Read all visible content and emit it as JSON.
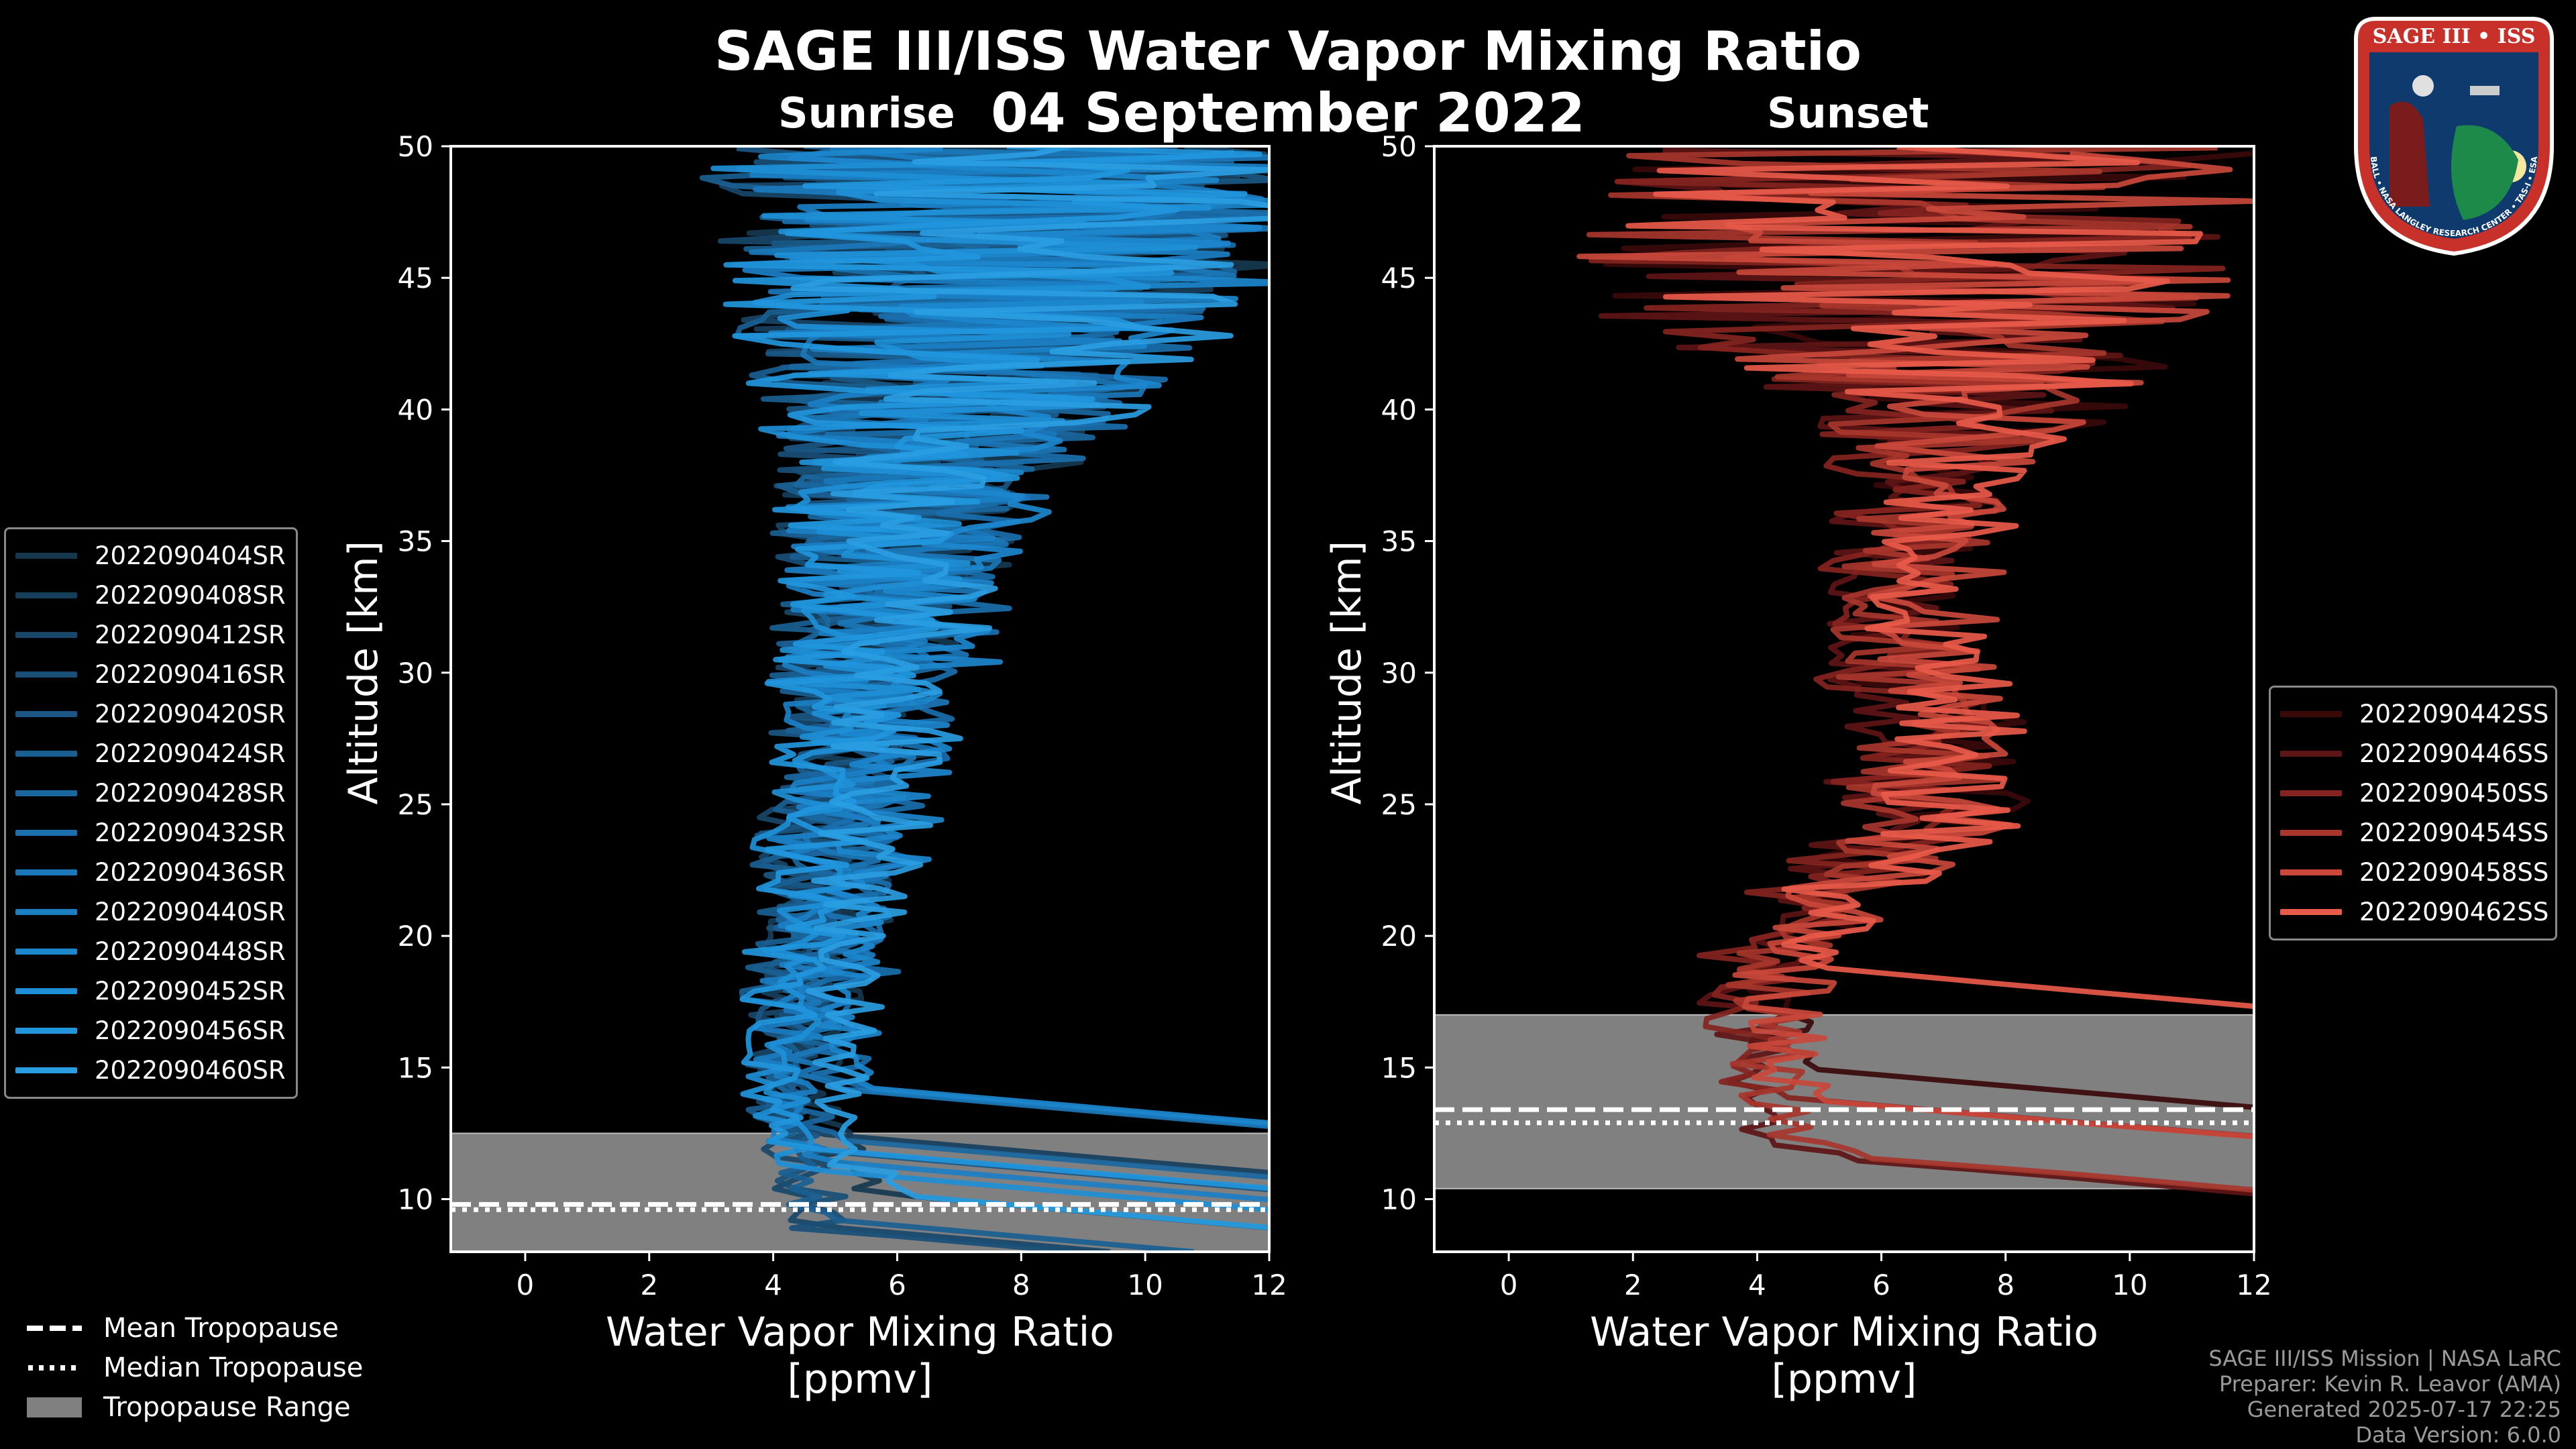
{
  "title": "SAGE III/ISS Water Vapor Mixing Ratio",
  "date": "04 September 2022",
  "panels": {
    "sunrise_label": "Sunrise",
    "sunset_label": "Sunset"
  },
  "credits": {
    "line1": "SAGE III/ISS Mission | NASA LaRC",
    "line2": "Preparer: Kevin R. Leavor (AMA)",
    "line3": "Generated 2025-07-17 22:25",
    "line4": "Data Version: 6.0.0"
  },
  "logo": {
    "text": "SAGE III • ISS",
    "ring_text": "BALL • NASA LANGLEY RESEARCH CENTER • TAS-I • ESA"
  },
  "bottom_legend": {
    "mean": "Mean Tropopause",
    "median": "Median Tropopause",
    "range": "Tropopause Range"
  },
  "colors": {
    "sunrise_base": "#1e90d8",
    "sunset_base": "#e85a4a",
    "range_fill": "#808080",
    "background": "#000000"
  },
  "chart_data": [
    {
      "type": "line",
      "panel": "Sunrise",
      "xlabel": "Water Vapor Mixing Ratio\n[ppmv]",
      "xlabel_line1": "Water Vapor Mixing Ratio",
      "xlabel_line2": "[ppmv]",
      "ylabel": "Altitude [km]",
      "xlim": [
        -1.2,
        12
      ],
      "ylim": [
        8,
        50
      ],
      "xticks": [
        0,
        2,
        4,
        6,
        8,
        10,
        12
      ],
      "yticks": [
        10,
        15,
        20,
        25,
        30,
        35,
        40,
        45,
        50
      ],
      "tropopause": {
        "mean": 9.8,
        "median": 9.6,
        "range": [
          8,
          12.5
        ]
      },
      "series": [
        {
          "name": "2022090404SR",
          "color": "#16384f"
        },
        {
          "name": "2022090408SR",
          "color": "#173f5c"
        },
        {
          "name": "2022090412SR",
          "color": "#184769"
        },
        {
          "name": "2022090416SR",
          "color": "#194f77"
        },
        {
          "name": "2022090420SR",
          "color": "#1a5784"
        },
        {
          "name": "2022090424SR",
          "color": "#1a5f92"
        },
        {
          "name": "2022090428SR",
          "color": "#1a679f"
        },
        {
          "name": "2022090432SR",
          "color": "#1a6fac"
        },
        {
          "name": "2022090436SR",
          "color": "#1b77b9"
        },
        {
          "name": "2022090440SR",
          "color": "#1b7fc4"
        },
        {
          "name": "2022090448SR",
          "color": "#1c87cd"
        },
        {
          "name": "2022090452SR",
          "color": "#1e8fd6"
        },
        {
          "name": "2022090456SR",
          "color": "#2196dd"
        },
        {
          "name": "2022090460SR",
          "color": "#2a9de2"
        }
      ],
      "profile_envelope": {
        "altitudes": [
          10,
          12,
          13,
          15,
          18,
          20,
          22,
          25,
          28,
          30,
          33,
          35,
          38,
          40,
          43,
          45,
          48,
          50
        ],
        "median_values": [
          5.0,
          4.8,
          4.6,
          4.5,
          4.7,
          4.9,
          5.0,
          5.2,
          5.5,
          5.7,
          6.0,
          6.2,
          6.6,
          7.0,
          7.5,
          7.8,
          8.0,
          8.0
        ],
        "spread": [
          0.6,
          0.6,
          0.5,
          0.5,
          0.7,
          0.8,
          0.9,
          1.0,
          1.1,
          1.3,
          1.5,
          1.8,
          2.2,
          2.8,
          3.6,
          4.2,
          4.8,
          5.0
        ]
      }
    },
    {
      "type": "line",
      "panel": "Sunset",
      "xlabel": "Water Vapor Mixing Ratio\n[ppmv]",
      "xlabel_line1": "Water Vapor Mixing Ratio",
      "xlabel_line2": "[ppmv]",
      "ylabel": "Altitude [km]",
      "xlim": [
        -1.2,
        12
      ],
      "ylim": [
        8,
        50
      ],
      "xticks": [
        0,
        2,
        4,
        6,
        8,
        10,
        12
      ],
      "yticks": [
        10,
        15,
        20,
        25,
        30,
        35,
        40,
        45,
        50
      ],
      "tropopause": {
        "mean": 13.4,
        "median": 12.9,
        "range": [
          10.4,
          17.0
        ]
      },
      "series": [
        {
          "name": "2022090442SS",
          "color": "#3a0a0a"
        },
        {
          "name": "2022090446SS",
          "color": "#5e1515"
        },
        {
          "name": "2022090450SS",
          "color": "#842420"
        },
        {
          "name": "2022090454SS",
          "color": "#a8362d"
        },
        {
          "name": "2022090458SS",
          "color": "#c9483b"
        },
        {
          "name": "2022090462SS",
          "color": "#e85a4a"
        }
      ],
      "profile_envelope": {
        "altitudes": [
          11,
          12,
          13,
          15,
          18,
          20,
          22,
          25,
          28,
          30,
          33,
          35,
          38,
          40,
          43,
          45,
          48,
          50
        ],
        "median_values": [
          6.0,
          5.2,
          4.6,
          4.4,
          4.3,
          4.6,
          5.5,
          7.0,
          7.0,
          6.6,
          6.6,
          6.8,
          7.0,
          7.4,
          6.5,
          6.5,
          6.5,
          6.5
        ],
        "spread": [
          0.5,
          0.6,
          0.6,
          0.6,
          0.8,
          1.0,
          1.3,
          1.5,
          1.3,
          1.2,
          1.2,
          1.2,
          1.4,
          2.5,
          4.5,
          5.5,
          5.5,
          5.5
        ]
      }
    }
  ]
}
